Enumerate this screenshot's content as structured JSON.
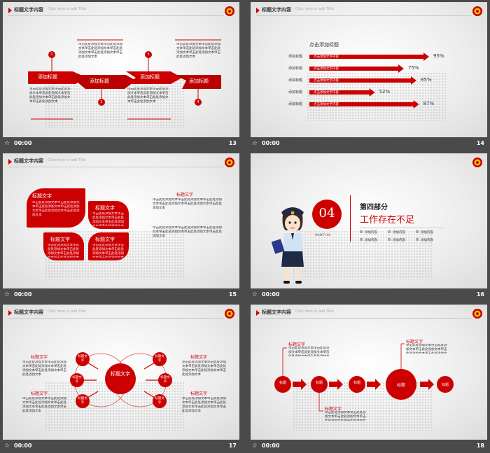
{
  "common": {
    "star": "☆",
    "time": "00:00",
    "header_title": "标题文字内容",
    "header_sub": "Click here to add Title",
    "body_text": "单击此处添加文本单击此处添加文本单击此处添加文本单击此处添加文本单击此处添加文本单击此处添加文本"
  },
  "s13": {
    "num": "13",
    "labels": [
      "添加标题",
      "添加标题",
      "添加标题",
      "添加标题"
    ],
    "markers": [
      "1",
      "2",
      "3",
      "4"
    ]
  },
  "s14": {
    "num": "14",
    "title": "点击添加标题",
    "rows": [
      {
        "label": "添加标题",
        "text": "点击添加文字内容",
        "value": "95%",
        "pct": 95
      },
      {
        "label": "添加标题",
        "text": "点击添加文字内容",
        "value": "75%",
        "pct": 75
      },
      {
        "label": "添加标题",
        "text": "点击添加文字内容",
        "value": "85%",
        "pct": 85
      },
      {
        "label": "添加标题",
        "text": "点击添加文字内容",
        "value": "52%",
        "pct": 52
      },
      {
        "label": "添加标题",
        "text": "点击添加文字内容",
        "value": "87%",
        "pct": 87
      }
    ]
  },
  "s15": {
    "num": "15",
    "leaf_title": "标题文字",
    "side_title": "标题文字"
  },
  "s16": {
    "num": "16",
    "number": "04",
    "part": "PART 04",
    "heading": "第四部分",
    "subheading": "工作存在不足",
    "items": [
      "添加内容",
      "添加内容",
      "添加内容",
      "添加内容",
      "添加内容",
      "添加内容"
    ]
  },
  "s17": {
    "num": "17",
    "center": "标题文字",
    "node": "标题文字",
    "side": "标题文字"
  },
  "s18": {
    "num": "18",
    "node": "标题",
    "big": "标题",
    "callout": "标题文字"
  }
}
